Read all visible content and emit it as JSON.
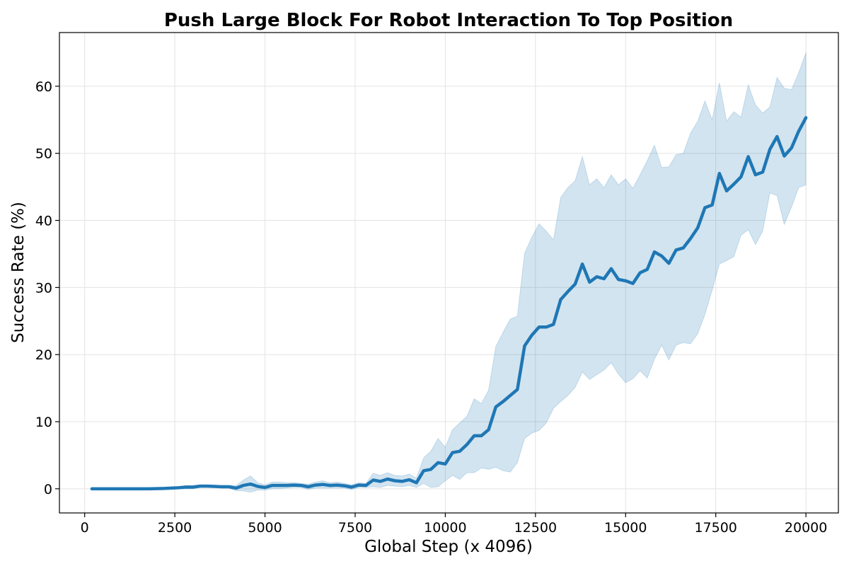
{
  "chart_data": {
    "type": "line",
    "title": "Push Large Block For Robot Interaction To Top Position",
    "xlabel": "Global Step (x 4096)",
    "ylabel": "Success Rate (%)",
    "xlim": [
      -700,
      20900
    ],
    "ylim": [
      -3.6,
      68
    ],
    "xticks": [
      0,
      2500,
      5000,
      7500,
      10000,
      12500,
      15000,
      17500,
      20000
    ],
    "xtick_labels": [
      "0",
      "2500",
      "5000",
      "7500",
      "10000",
      "12500",
      "15000",
      "17500",
      "20000"
    ],
    "yticks": [
      0,
      10,
      20,
      30,
      40,
      50,
      60
    ],
    "ytick_labels": [
      "0",
      "10",
      "20",
      "30",
      "40",
      "50",
      "60"
    ],
    "grid": true,
    "legend": "none",
    "line_color": "#1f77b4",
    "band_color": "#1f77b4",
    "series": [
      {
        "x": [
          200,
          600,
          1000,
          1400,
          1800,
          2200,
          2600,
          2800,
          3000,
          3200,
          3400,
          3600,
          3800,
          4000,
          4200,
          4400,
          4600,
          4800,
          5000,
          5200,
          5400,
          5600,
          5800,
          6000,
          6200,
          6400,
          6600,
          6800,
          7000,
          7200,
          7400,
          7600,
          7800,
          8000,
          8200,
          8400,
          8600,
          8800,
          9000,
          9200,
          9400,
          9600,
          9800,
          10000,
          10200,
          10400,
          10600,
          10800,
          11000,
          11200,
          11400,
          11600,
          11800,
          12000,
          12200,
          12400,
          12600,
          12800,
          13000,
          13200,
          13400,
          13600,
          13800,
          14000,
          14200,
          14400,
          14600,
          14800,
          15000,
          15200,
          15400,
          15600,
          15800,
          16000,
          16200,
          16400,
          16600,
          16800,
          17000,
          17200,
          17400,
          17600,
          17800,
          18000,
          18200,
          18400,
          18600,
          18800,
          19000,
          19200,
          19400,
          19600,
          19800,
          20000
        ],
        "mean": [
          0,
          0,
          0,
          0,
          0,
          0.05,
          0.15,
          0.25,
          0.25,
          0.4,
          0.4,
          0.35,
          0.3,
          0.3,
          0.1,
          0.5,
          0.7,
          0.35,
          0.2,
          0.5,
          0.5,
          0.5,
          0.55,
          0.5,
          0.3,
          0.55,
          0.65,
          0.5,
          0.55,
          0.45,
          0.25,
          0.55,
          0.5,
          1.3,
          1.1,
          1.45,
          1.2,
          1.1,
          1.35,
          0.9,
          2.7,
          2.9,
          3.9,
          3.7,
          5.4,
          5.6,
          6.6,
          7.9,
          7.9,
          8.8,
          12.2,
          13.0,
          13.9,
          14.8,
          21.3,
          22.9,
          24.1,
          24.1,
          24.5,
          28.2,
          29.4,
          30.5,
          33.5,
          30.8,
          31.6,
          31.3,
          32.8,
          31.2,
          31.0,
          30.6,
          32.2,
          32.7,
          35.3,
          34.7,
          33.6,
          35.6,
          35.9,
          37.3,
          38.9,
          41.9,
          42.3,
          47.0,
          44.4,
          45.4,
          46.5,
          49.5,
          46.8,
          47.2,
          50.6,
          52.5,
          49.6,
          50.8,
          53.3,
          55.3
        ],
        "upper": [
          0,
          0,
          0,
          0,
          0,
          0.1,
          0.3,
          0.5,
          0.5,
          0.6,
          0.6,
          0.55,
          0.5,
          0.5,
          0.5,
          1.3,
          1.9,
          0.9,
          0.6,
          1.0,
          1.0,
          0.9,
          0.9,
          0.8,
          0.7,
          1.0,
          1.2,
          0.9,
          1.0,
          0.8,
          0.6,
          0.9,
          0.8,
          2.3,
          2.0,
          2.4,
          2.0,
          1.9,
          2.2,
          1.6,
          4.6,
          5.6,
          7.5,
          6.2,
          8.8,
          9.8,
          10.8,
          13.4,
          12.7,
          14.7,
          21.2,
          23.3,
          25.3,
          25.7,
          35.1,
          37.5,
          39.5,
          38.4,
          37.1,
          43.4,
          44.9,
          45.9,
          49.5,
          45.3,
          46.2,
          44.9,
          46.8,
          45.3,
          46.2,
          44.8,
          46.8,
          48.9,
          51.2,
          47.9,
          48.0,
          49.8,
          50.0,
          53.0,
          54.8,
          57.8,
          55.0,
          60.5,
          54.8,
          56.2,
          55.4,
          60.2,
          57.2,
          56.0,
          56.9,
          61.3,
          59.7,
          59.5,
          62.0,
          65.0
        ],
        "lower": [
          0,
          0,
          0,
          0,
          0,
          0,
          0,
          0,
          0,
          0.2,
          0.2,
          0.15,
          0.1,
          0.1,
          -0.3,
          -0.3,
          -0.5,
          -0.2,
          -0.2,
          0,
          0,
          0.1,
          0.2,
          0.2,
          -0.1,
          0.1,
          0.1,
          0.1,
          0.1,
          0.1,
          -0.1,
          0.2,
          0.2,
          0.3,
          0.2,
          0.5,
          0.4,
          0.3,
          0.5,
          0.2,
          0.8,
          0.2,
          0.3,
          1.2,
          2.0,
          1.4,
          2.4,
          2.4,
          3.1,
          2.9,
          3.2,
          2.7,
          2.5,
          3.9,
          7.5,
          8.3,
          8.7,
          9.8,
          12.0,
          13.0,
          13.9,
          15.1,
          17.4,
          16.3,
          17.0,
          17.7,
          18.8,
          17.1,
          15.8,
          16.4,
          17.6,
          16.5,
          19.3,
          21.4,
          19.2,
          21.4,
          21.8,
          21.6,
          23.1,
          26.0,
          29.6,
          33.5,
          34.0,
          34.6,
          37.8,
          38.6,
          36.4,
          38.4,
          44.1,
          43.7,
          39.4,
          42.0,
          44.9,
          45.3
        ]
      }
    ]
  }
}
